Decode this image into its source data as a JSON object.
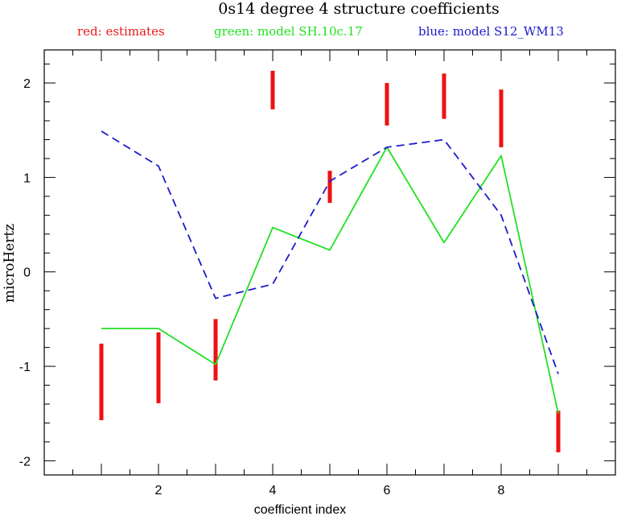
{
  "chart_data": {
    "type": "line",
    "title": "0s14 degree 4 structure coefficients",
    "xlabel": "coefficient index",
    "ylabel": "microHertz",
    "xlim": [
      0,
      10
    ],
    "ylim": [
      -2.15,
      2.35
    ],
    "x_ticks": [
      2,
      4,
      6,
      8
    ],
    "y_ticks": [
      -2,
      -1,
      0,
      1,
      2
    ],
    "grid": false,
    "legend": [
      {
        "text": "red: estimates",
        "color": "#e8191c"
      },
      {
        "text": "green: model SH.10c.17",
        "color": "#22e022"
      },
      {
        "text": "blue: model S12_WM13",
        "color": "#1c1ccc"
      }
    ],
    "series": [
      {
        "name": "estimates",
        "style": "error-bars",
        "color": "#ee1111",
        "x": [
          1,
          2,
          3,
          4,
          5,
          6,
          7,
          8,
          9
        ],
        "low": [
          -1.57,
          -1.39,
          -1.15,
          1.72,
          0.73,
          1.55,
          1.62,
          1.32,
          -1.91
        ],
        "high": [
          -0.76,
          -0.64,
          -0.5,
          2.13,
          1.07,
          2.0,
          2.1,
          1.93,
          -1.47
        ]
      },
      {
        "name": "model SH.10c.17",
        "style": "solid",
        "color": "#22e022",
        "x": [
          1,
          2,
          3,
          4,
          5,
          6,
          7,
          8,
          9
        ],
        "values": [
          -0.6,
          -0.6,
          -0.98,
          0.47,
          0.23,
          1.32,
          0.31,
          1.23,
          -1.5
        ]
      },
      {
        "name": "model S12_WM13",
        "style": "dashed",
        "color": "#1c1ccc",
        "x": [
          1,
          2,
          3,
          4,
          5,
          6,
          7,
          8,
          9
        ],
        "values": [
          1.49,
          1.12,
          -0.28,
          -0.13,
          0.96,
          1.32,
          1.4,
          0.6,
          -1.08
        ]
      }
    ]
  }
}
